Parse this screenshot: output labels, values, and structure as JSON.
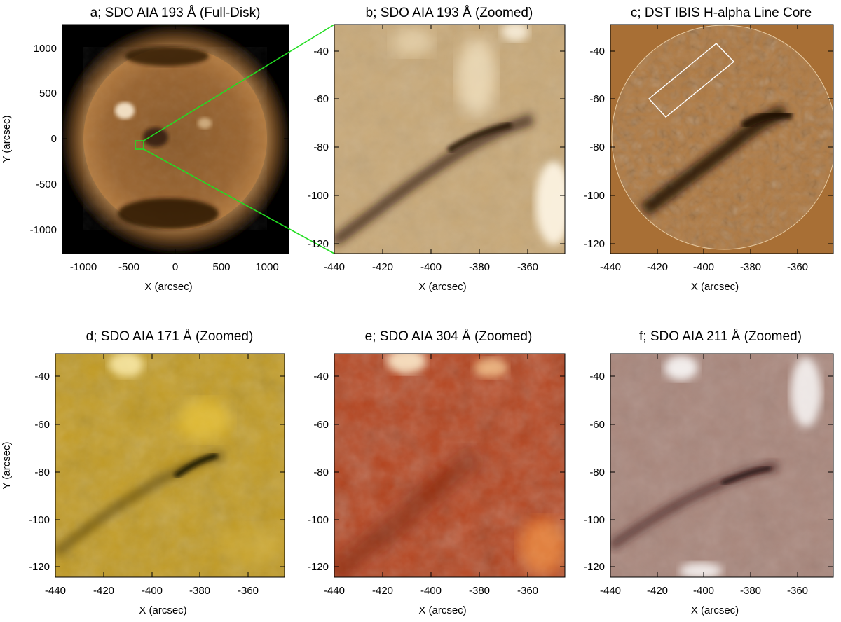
{
  "panels": [
    {
      "id": "a",
      "title": "a; SDO AIA 193 Å (Full-Disk)",
      "xlabel": "X (arcsec)",
      "ylabel": "Y (arcsec)",
      "xticks": [
        "-1000",
        "-500",
        "0",
        "500",
        "1000"
      ],
      "yticks": [
        "1000",
        "500",
        "0",
        "-500",
        "-1000"
      ],
      "xlim": [
        -1230,
        1230
      ],
      "ylim": [
        -1230,
        1230
      ],
      "channel_color": "#b07a3c"
    },
    {
      "id": "b",
      "title": "b; SDO AIA 193 Å (Zoomed)",
      "xlabel": "X (arcsec)",
      "ylabel": "",
      "xticks": [
        "-440",
        "-420",
        "-400",
        "-380",
        "-360"
      ],
      "yticks": [
        "-40",
        "-60",
        "-80",
        "-100",
        "-120"
      ],
      "xlim": [
        -440,
        -345
      ],
      "ylim": [
        -125,
        -30
      ],
      "channel_color": "#c9a877"
    },
    {
      "id": "c",
      "title": "c; DST IBIS H-alpha Line Core",
      "xlabel": "X (arcsec)",
      "ylabel": "",
      "xticks": [
        "-440",
        "-420",
        "-400",
        "-380",
        "-360"
      ],
      "yticks": [
        "-40",
        "-60",
        "-80",
        "-100",
        "-120"
      ],
      "xlim": [
        -440,
        -345
      ],
      "ylim": [
        -125,
        -30
      ],
      "channel_color": "#a86f35"
    },
    {
      "id": "d",
      "title": "d; SDO AIA 171 Å (Zoomed)",
      "xlabel": "X (arcsec)",
      "ylabel": "Y (arcsec)",
      "xticks": [
        "-440",
        "-420",
        "-400",
        "-380",
        "-360"
      ],
      "yticks": [
        "-40",
        "-60",
        "-80",
        "-100",
        "-120"
      ],
      "xlim": [
        -440,
        -345
      ],
      "ylim": [
        -125,
        -30
      ],
      "channel_color": "#c49a18"
    },
    {
      "id": "e",
      "title": "e; SDO AIA 304 Å (Zoomed)",
      "xlabel": "X (arcsec)",
      "ylabel": "",
      "xticks": [
        "-440",
        "-420",
        "-400",
        "-380",
        "-360"
      ],
      "yticks": [
        "-40",
        "-60",
        "-80",
        "-100",
        "-120"
      ],
      "xlim": [
        -440,
        -345
      ],
      "ylim": [
        -125,
        -30
      ],
      "channel_color": "#c24a1c"
    },
    {
      "id": "f",
      "title": "f; SDO AIA 211 Å (Zoomed)",
      "xlabel": "X (arcsec)",
      "ylabel": "",
      "xticks": [
        "-440",
        "-420",
        "-400",
        "-380",
        "-360"
      ],
      "yticks": [
        "-40",
        "-60",
        "-80",
        "-100",
        "-120"
      ],
      "xlim": [
        -440,
        -345
      ],
      "ylim": [
        -125,
        -30
      ],
      "channel_color": "#a88478"
    }
  ],
  "annotations": {
    "zoom_box_color": "#22dd22",
    "ibis_box_color": "#ffffff"
  }
}
